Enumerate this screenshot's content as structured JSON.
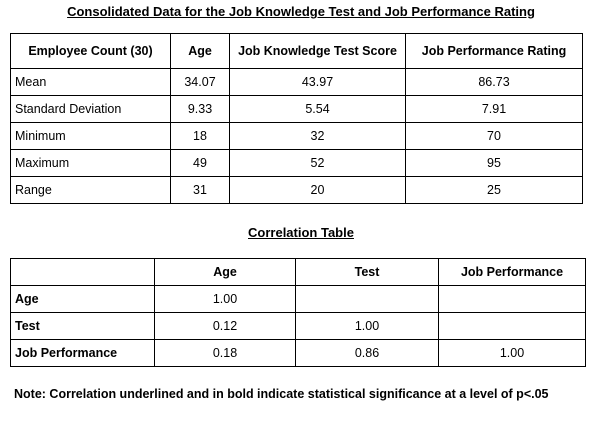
{
  "title": "Consolidated Data for the Job Knowledge Test and Job Performance Rating",
  "summary_table": {
    "headers": [
      "Employee Count (30)",
      "Age",
      "Job Knowledge Test Score",
      "Job Performance Rating"
    ],
    "rows": [
      [
        "Mean",
        "34.07",
        "43.97",
        "86.73"
      ],
      [
        "Standard Deviation",
        "9.33",
        "5.54",
        "7.91"
      ],
      [
        "Minimum",
        "18",
        "32",
        "70"
      ],
      [
        "Maximum",
        "49",
        "52",
        "95"
      ],
      [
        "Range",
        "31",
        "20",
        "25"
      ]
    ]
  },
  "correlation_title": "Correlation Table",
  "correlation_table": {
    "headers": [
      "",
      "Age",
      "Test",
      "Job Performance"
    ],
    "rows": [
      [
        "Age",
        "1.00",
        "",
        ""
      ],
      [
        "Test",
        "0.12",
        "1.00",
        ""
      ],
      [
        "Job Performance",
        "0.18",
        "0.86",
        "1.00"
      ]
    ]
  },
  "note": "Note: Correlation underlined and in bold indicate statistical significance at a level of p<.05"
}
